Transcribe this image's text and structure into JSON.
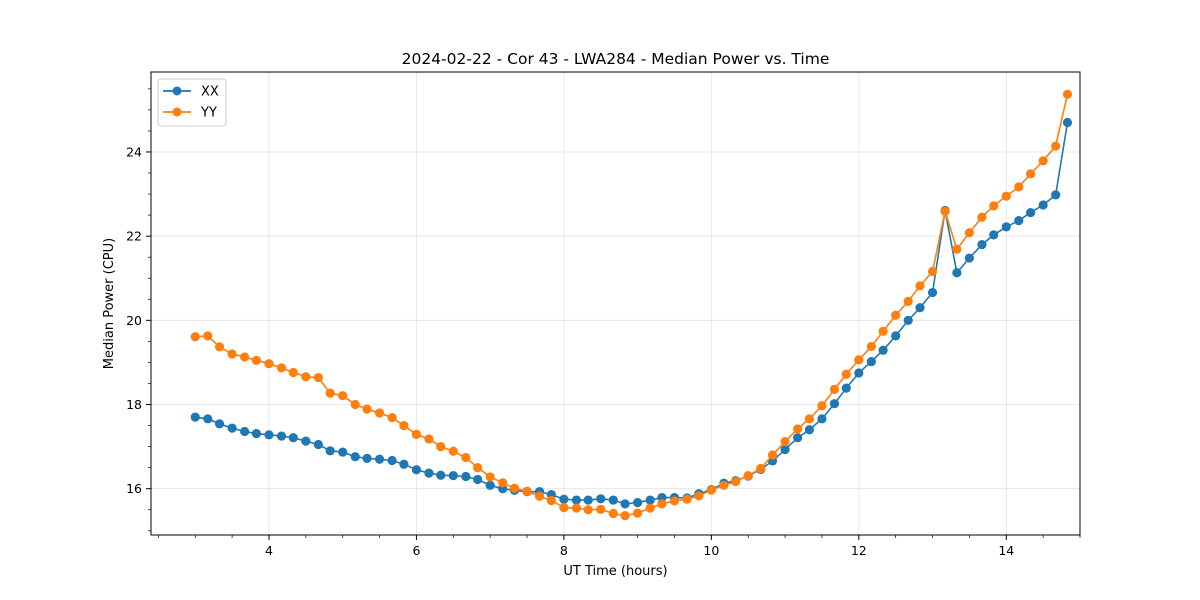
{
  "chart_data": {
    "type": "line",
    "title": "2024-02-22 - Cor 43 - LWA284 - Median Power vs. Time",
    "xlabel": "UT Time (hours)",
    "ylabel": "Median Power (CPU)",
    "xlim": [
      2.4,
      15.0
    ],
    "ylim": [
      14.9,
      25.9
    ],
    "xticks": [
      4,
      6,
      8,
      10,
      12,
      14
    ],
    "xtick_labels": [
      "4",
      "6",
      "8",
      "10",
      "12",
      "14"
    ],
    "yticks": [
      16,
      18,
      20,
      22,
      24
    ],
    "ytick_labels": [
      "16",
      "18",
      "20",
      "22",
      "24"
    ],
    "grid": true,
    "legend_position": "top-left",
    "x": [
      3.0,
      3.17,
      3.33,
      3.5,
      3.67,
      3.83,
      4.0,
      4.17,
      4.33,
      4.5,
      4.67,
      4.83,
      5.0,
      5.17,
      5.33,
      5.5,
      5.67,
      5.83,
      6.0,
      6.17,
      6.33,
      6.5,
      6.67,
      6.83,
      7.0,
      7.17,
      7.33,
      7.5,
      7.67,
      7.83,
      8.0,
      8.17,
      8.33,
      8.5,
      8.67,
      8.83,
      9.0,
      9.17,
      9.33,
      9.5,
      9.67,
      9.83,
      10.0,
      10.17,
      10.33,
      10.5,
      10.67,
      10.83,
      11.0,
      11.17,
      11.33,
      11.5,
      11.67,
      11.83,
      12.0,
      12.17,
      12.33,
      12.5,
      12.67,
      12.83,
      13.0,
      13.17,
      13.33,
      13.5,
      13.67,
      13.83,
      14.0,
      14.17,
      14.33,
      14.5,
      14.67,
      14.83
    ],
    "series": [
      {
        "name": "XX",
        "color": "#1f77b4",
        "values": [
          17.7,
          17.66,
          17.54,
          17.44,
          17.36,
          17.31,
          17.28,
          17.25,
          17.21,
          17.13,
          17.05,
          16.9,
          16.87,
          16.76,
          16.72,
          16.7,
          16.67,
          16.58,
          16.45,
          16.37,
          16.32,
          16.31,
          16.29,
          16.22,
          16.08,
          16.0,
          15.96,
          15.93,
          15.93,
          15.86,
          15.75,
          15.73,
          15.73,
          15.76,
          15.73,
          15.64,
          15.67,
          15.73,
          15.79,
          15.79,
          15.78,
          15.88,
          15.98,
          16.13,
          16.19,
          16.3,
          16.46,
          16.66,
          16.93,
          17.21,
          17.4,
          17.66,
          18.02,
          18.39,
          18.75,
          19.02,
          19.29,
          19.63,
          20.0,
          20.3,
          20.66,
          22.61,
          21.13,
          21.48,
          21.8,
          22.03,
          22.22,
          22.37,
          22.56,
          22.74,
          22.98,
          24.7
        ]
      },
      {
        "name": "YY",
        "color": "#ff7f0e",
        "values": [
          19.61,
          19.63,
          19.37,
          19.2,
          19.13,
          19.05,
          18.97,
          18.87,
          18.76,
          18.66,
          18.64,
          18.27,
          18.21,
          18.0,
          17.89,
          17.8,
          17.69,
          17.5,
          17.29,
          17.18,
          17.0,
          16.89,
          16.74,
          16.5,
          16.28,
          16.14,
          16.01,
          15.94,
          15.82,
          15.72,
          15.55,
          15.54,
          15.5,
          15.51,
          15.41,
          15.36,
          15.42,
          15.54,
          15.64,
          15.71,
          15.75,
          15.83,
          15.97,
          16.08,
          16.17,
          16.31,
          16.48,
          16.8,
          17.12,
          17.42,
          17.66,
          17.97,
          18.36,
          18.72,
          19.06,
          19.38,
          19.74,
          20.12,
          20.45,
          20.82,
          21.16,
          22.59,
          21.69,
          22.08,
          22.45,
          22.72,
          22.95,
          23.17,
          23.48,
          23.79,
          24.14,
          25.37
        ]
      }
    ]
  }
}
